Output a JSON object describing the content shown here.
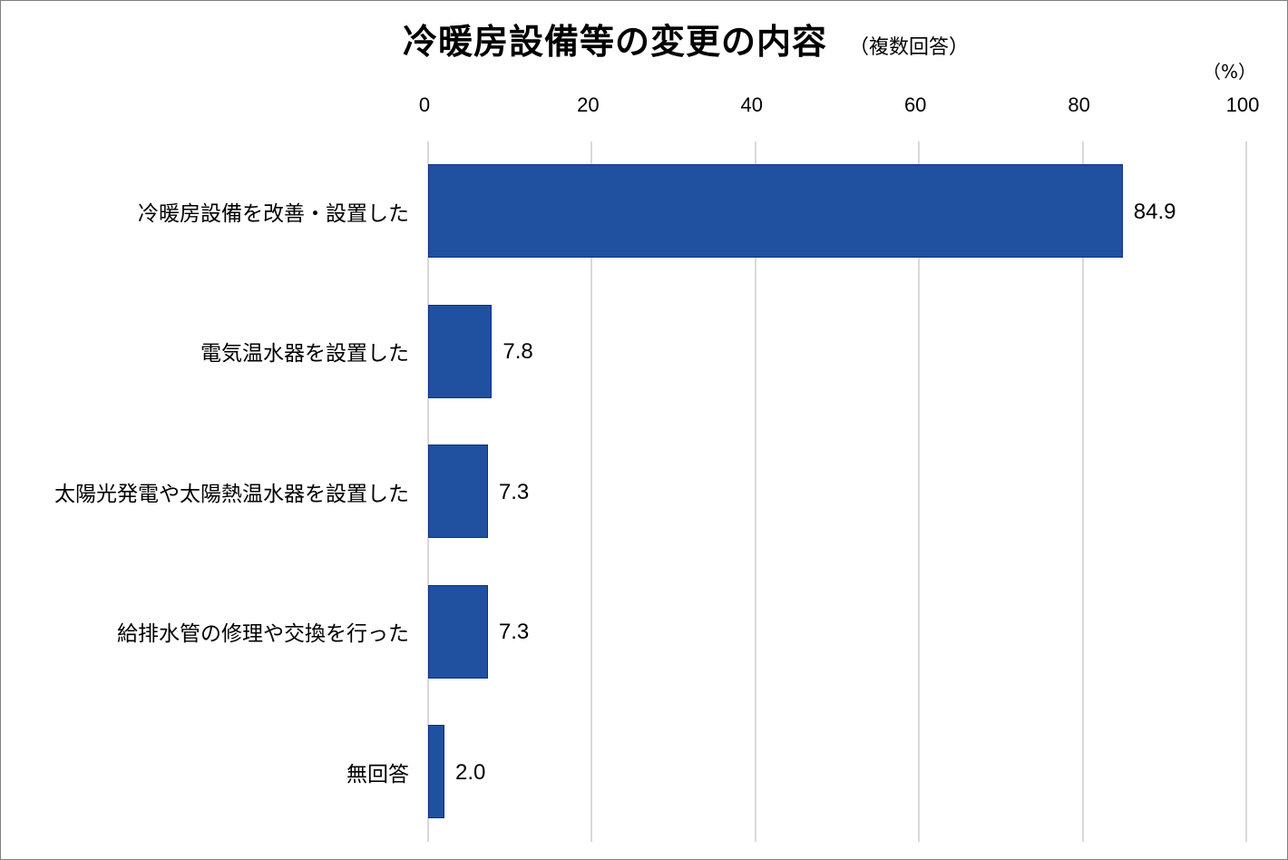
{
  "chart": {
    "title": "冷暖房設備等の変更の内容",
    "subtitle": "（複数回答）",
    "unit_label": "（%）",
    "bar_color": "#2050a0",
    "gridline_color": "#d9d9d9"
  },
  "chart_data": {
    "type": "bar",
    "orientation": "horizontal",
    "title": "冷暖房設備等の変更の内容（複数回答）",
    "xlabel": "（%）",
    "ylabel": "",
    "xlim": [
      0,
      100
    ],
    "x_ticks": [
      "0",
      "20",
      "40",
      "60",
      "80",
      "100"
    ],
    "grid": true,
    "legend": null,
    "categories": [
      "冷暖房設備を改善・設置した",
      "電気温水器を設置した",
      "太陽光発電や太陽熱温水器を設置した",
      "給排水管の修理や交換を行った",
      "無回答"
    ],
    "values": [
      84.9,
      7.8,
      7.3,
      7.3,
      2.0
    ],
    "value_labels": [
      "84.9",
      "7.8",
      "7.3",
      "7.3",
      "2.0"
    ]
  }
}
